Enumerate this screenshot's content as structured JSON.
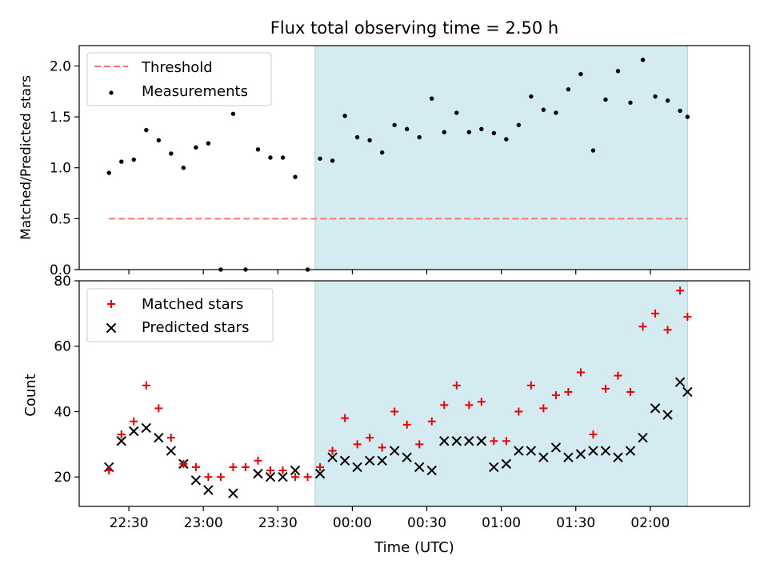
{
  "title": "Flux total observing time = 2.50 h",
  "colors": {
    "threshold": "#ff7070",
    "measurement": "#000000",
    "matched": "#ee0000",
    "predicted": "#000000",
    "span": "#d4ebf1"
  },
  "chart_data": [
    {
      "type": "scatter",
      "xlabel": "",
      "ylabel": "Matched/Predicted stars",
      "ylim": [
        0.0,
        2.2
      ],
      "yticks": [
        "0.0",
        "0.5",
        "1.0",
        "1.5",
        "2.0"
      ],
      "xlim": [
        "22:10",
        "02:40"
      ],
      "xticks": [
        "22:30",
        "23:00",
        "23:30",
        "00:00",
        "00:30",
        "01:00",
        "01:30",
        "02:00"
      ],
      "xtick_labels_visible": false,
      "highlight_span": [
        "23:45",
        "02:15"
      ],
      "legend": {
        "placement": "upper-left",
        "entries": [
          "Threshold",
          "Measurements"
        ]
      },
      "threshold": {
        "name": "Threshold",
        "x": [
          "22:22",
          "02:15"
        ],
        "y": 0.5,
        "style": "dashed"
      },
      "series": [
        {
          "name": "Measurements",
          "marker": "dot",
          "x": [
            "22:22",
            "22:27",
            "22:32",
            "22:37",
            "22:42",
            "22:47",
            "22:52",
            "22:57",
            "23:02",
            "23:07",
            "23:12",
            "23:17",
            "23:22",
            "23:27",
            "23:32",
            "23:37",
            "23:42",
            "23:47",
            "23:52",
            "23:57",
            "00:02",
            "00:07",
            "00:12",
            "00:17",
            "00:22",
            "00:27",
            "00:32",
            "00:37",
            "00:42",
            "00:47",
            "00:52",
            "00:57",
            "01:02",
            "01:07",
            "01:12",
            "01:17",
            "01:22",
            "01:27",
            "01:32",
            "01:37",
            "01:42",
            "01:47",
            "01:52",
            "01:57",
            "02:02",
            "02:07",
            "02:12",
            "02:15"
          ],
          "values": [
            0.95,
            1.06,
            1.08,
            1.37,
            1.27,
            1.14,
            1.0,
            1.2,
            1.24,
            0.0,
            1.53,
            0.0,
            1.18,
            1.1,
            1.1,
            0.91,
            0.0,
            1.09,
            1.07,
            1.51,
            1.3,
            1.27,
            1.15,
            1.42,
            1.38,
            1.3,
            1.68,
            1.35,
            1.54,
            1.35,
            1.38,
            1.34,
            1.28,
            1.42,
            1.7,
            1.57,
            1.54,
            1.77,
            1.92,
            1.17,
            1.67,
            1.95,
            1.64,
            2.06,
            1.7,
            1.66,
            1.56,
            1.5
          ]
        }
      ]
    },
    {
      "type": "scatter",
      "xlabel": "Time (UTC)",
      "ylabel": "Count",
      "ylim": [
        11,
        80
      ],
      "yticks": [
        "20",
        "40",
        "60",
        "80"
      ],
      "xlim": [
        "22:10",
        "02:40"
      ],
      "xticks": [
        "22:30",
        "23:00",
        "23:30",
        "00:00",
        "00:30",
        "01:00",
        "01:30",
        "02:00"
      ],
      "highlight_span": [
        "23:45",
        "02:15"
      ],
      "legend": {
        "placement": "upper-left",
        "entries": [
          "Matched stars",
          "Predicted stars"
        ]
      },
      "series": [
        {
          "name": "Matched stars",
          "marker": "plus",
          "x": [
            "22:22",
            "22:27",
            "22:32",
            "22:37",
            "22:42",
            "22:47",
            "22:52",
            "22:57",
            "23:02",
            "23:07",
            "23:12",
            "23:17",
            "23:22",
            "23:27",
            "23:32",
            "23:37",
            "23:42",
            "23:47",
            "23:52",
            "23:57",
            "00:02",
            "00:07",
            "00:12",
            "00:17",
            "00:22",
            "00:27",
            "00:32",
            "00:37",
            "00:42",
            "00:47",
            "00:52",
            "00:57",
            "01:02",
            "01:07",
            "01:12",
            "01:17",
            "01:22",
            "01:27",
            "01:32",
            "01:37",
            "01:42",
            "01:47",
            "01:52",
            "01:57",
            "02:02",
            "02:07",
            "02:12",
            "02:15"
          ],
          "values": [
            22,
            33,
            37,
            48,
            41,
            32,
            24,
            23,
            20,
            20,
            23,
            23,
            25,
            22,
            22,
            20,
            20,
            23,
            28,
            38,
            30,
            32,
            29,
            40,
            36,
            30,
            37,
            42,
            48,
            42,
            43,
            31,
            31,
            40,
            48,
            41,
            45,
            46,
            52,
            33,
            47,
            51,
            46,
            66,
            70,
            65,
            77,
            69
          ]
        },
        {
          "name": "Predicted stars",
          "marker": "x",
          "x": [
            "22:22",
            "22:27",
            "22:32",
            "22:37",
            "22:42",
            "22:47",
            "22:52",
            "22:57",
            "23:02",
            "23:12",
            "23:22",
            "23:27",
            "23:32",
            "23:37",
            "23:47",
            "23:52",
            "23:57",
            "00:02",
            "00:07",
            "00:12",
            "00:17",
            "00:22",
            "00:27",
            "00:32",
            "00:37",
            "00:42",
            "00:47",
            "00:52",
            "00:57",
            "01:02",
            "01:07",
            "01:12",
            "01:17",
            "01:22",
            "01:27",
            "01:32",
            "01:37",
            "01:42",
            "01:47",
            "01:52",
            "01:57",
            "02:02",
            "02:07",
            "02:12",
            "02:15"
          ],
          "values": [
            23,
            31,
            34,
            35,
            32,
            28,
            24,
            19,
            16,
            15,
            21,
            20,
            20,
            22,
            21,
            26,
            25,
            23,
            25,
            25,
            28,
            26,
            23,
            22,
            31,
            31,
            31,
            31,
            23,
            24,
            28,
            28,
            26,
            29,
            26,
            27,
            28,
            28,
            26,
            28,
            32,
            41,
            39,
            49,
            46
          ]
        }
      ]
    }
  ]
}
